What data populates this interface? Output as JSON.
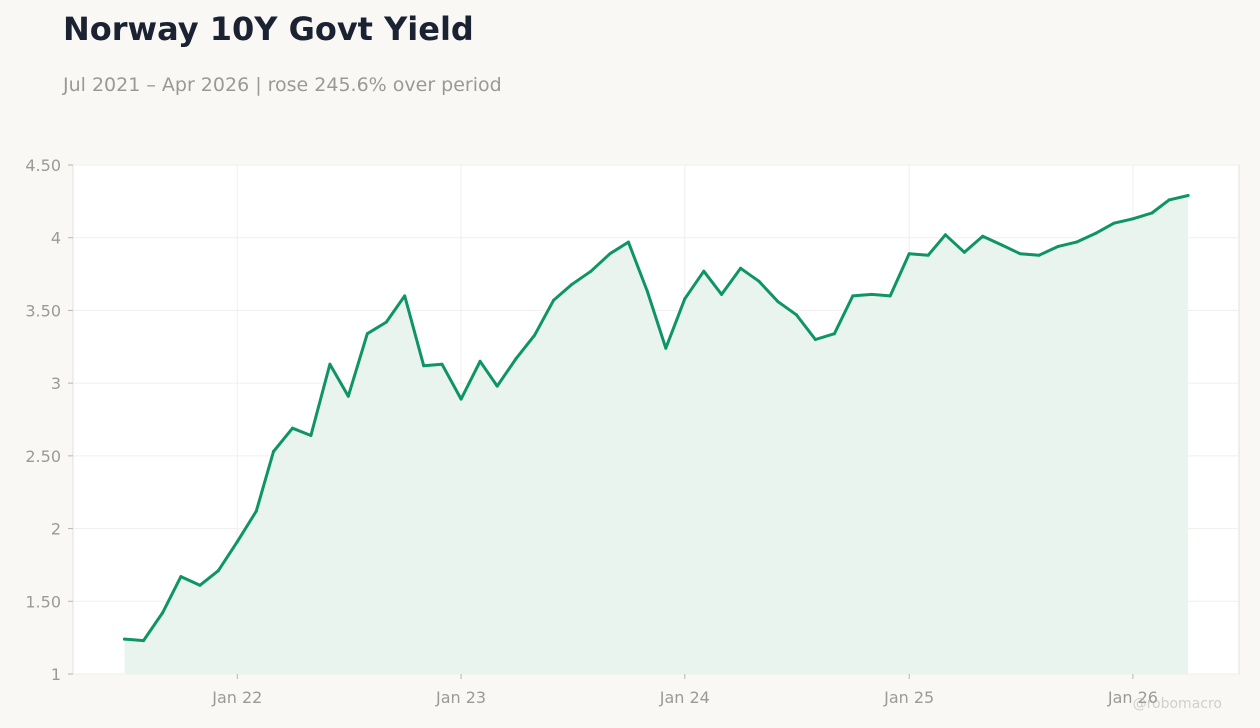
{
  "title": "Norway 10Y Govt Yield",
  "subtitle": "Jul 2021 – Apr 2026 | rose 245.6% over period",
  "watermark": "@robomacro",
  "colors": {
    "line": "#0f9466",
    "fill": "#e9f4ef",
    "grid": "#efefec",
    "text": "#9a9a97"
  },
  "chart_data": {
    "type": "area",
    "title": "Norway 10Y Govt Yield",
    "subtitle": "Jul 2021 – Apr 2026 | rose 245.6% over period",
    "xlabel": "",
    "ylabel": "",
    "ylim": [
      1,
      4.5
    ],
    "xlim": [
      "2021-04-08",
      "2026-06-23"
    ],
    "grid": true,
    "legend": "none",
    "yticks": [
      1,
      1.5,
      2,
      2.5,
      3,
      3.5,
      4,
      4.5
    ],
    "ytick_labels": [
      "1",
      "1.50",
      "2",
      "2.50",
      "3",
      "3.50",
      "4",
      "4.50"
    ],
    "xticks": [
      "2022-01-01",
      "2023-01-01",
      "2024-01-01",
      "2025-01-01",
      "2026-01-01"
    ],
    "xtick_labels": [
      "Jan 22",
      "Jan 23",
      "Jan 24",
      "Jan 25",
      "Jan 26"
    ],
    "series": [
      {
        "x": [
          "2021-07-01",
          "2021-08-01",
          "2021-09-01",
          "2021-10-01",
          "2021-11-01",
          "2021-12-01",
          "2022-01-01",
          "2022-02-01",
          "2022-03-01",
          "2022-04-01",
          "2022-05-01",
          "2022-06-01",
          "2022-07-01",
          "2022-08-01",
          "2022-09-01",
          "2022-10-01",
          "2022-11-01",
          "2022-12-01",
          "2023-01-01",
          "2023-02-01",
          "2023-03-01",
          "2023-04-01",
          "2023-05-01",
          "2023-06-01",
          "2023-07-01",
          "2023-08-01",
          "2023-09-01",
          "2023-10-01",
          "2023-11-01",
          "2023-12-01",
          "2024-01-01",
          "2024-02-01",
          "2024-03-01",
          "2024-04-01",
          "2024-05-01",
          "2024-06-01",
          "2024-07-01",
          "2024-08-01",
          "2024-09-01",
          "2024-10-01",
          "2024-11-01",
          "2024-12-01",
          "2025-01-01",
          "2025-02-01",
          "2025-03-01",
          "2025-04-01",
          "2025-05-01",
          "2025-06-01",
          "2025-07-01",
          "2025-08-01",
          "2025-09-01",
          "2025-10-01",
          "2025-11-01",
          "2025-12-01",
          "2026-01-01",
          "2026-02-01",
          "2026-03-01",
          "2026-04-01"
        ],
        "values": [
          1.24,
          1.23,
          1.42,
          1.67,
          1.61,
          1.71,
          1.91,
          2.12,
          2.53,
          2.69,
          2.64,
          3.13,
          2.91,
          3.34,
          3.42,
          3.6,
          3.12,
          3.13,
          2.89,
          3.15,
          2.98,
          3.17,
          3.33,
          3.57,
          3.68,
          3.77,
          3.89,
          3.97,
          3.63,
          3.24,
          3.58,
          3.77,
          3.61,
          3.79,
          3.7,
          3.56,
          3.47,
          3.3,
          3.34,
          3.6,
          3.61,
          3.6,
          3.89,
          3.88,
          4.02,
          3.9,
          4.01,
          3.95,
          3.89,
          3.88,
          3.94,
          3.97,
          4.03,
          4.1,
          4.13,
          4.17,
          4.26,
          4.29
        ]
      }
    ]
  }
}
